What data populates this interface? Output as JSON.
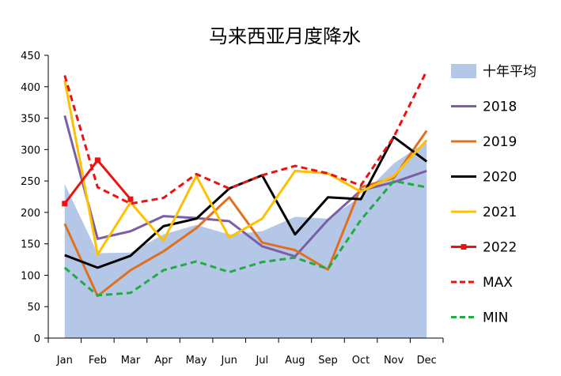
{
  "chart_data": {
    "type": "line",
    "title": "马来西亚月度降水",
    "xlabel": "",
    "ylabel": "",
    "ylim": [
      0,
      450
    ],
    "yticks": [
      0,
      50,
      100,
      150,
      200,
      250,
      300,
      350,
      400,
      450
    ],
    "categories": [
      "Jan",
      "Feb",
      "Mar",
      "Apr",
      "May",
      "Jun",
      "Jul",
      "Aug",
      "Sep",
      "Oct",
      "Nov",
      "Dec"
    ],
    "grid": false,
    "legend_position": "right",
    "area": {
      "name": "十年平均",
      "color": "#b4c7e7",
      "values": [
        245,
        135,
        136,
        165,
        180,
        165,
        170,
        193,
        190,
        225,
        278,
        313
      ]
    },
    "series": [
      {
        "name": "2018",
        "color": "#7b5ea7",
        "style": "solid",
        "marker": "none",
        "values": [
          354,
          158,
          170,
          194,
          191,
          186,
          146,
          130,
          188,
          235,
          248,
          266
        ]
      },
      {
        "name": "2019",
        "color": "#e07020",
        "style": "solid",
        "marker": "none",
        "values": [
          182,
          67,
          108,
          138,
          175,
          224,
          152,
          140,
          109,
          240,
          255,
          330
        ]
      },
      {
        "name": "2020",
        "color": "#000000",
        "style": "solid",
        "marker": "none",
        "values": [
          132,
          112,
          131,
          178,
          190,
          238,
          259,
          165,
          224,
          221,
          320,
          281
        ]
      },
      {
        "name": "2021",
        "color": "#ffc000",
        "style": "solid",
        "marker": "none",
        "values": [
          410,
          133,
          216,
          155,
          258,
          160,
          190,
          266,
          262,
          233,
          258,
          315
        ]
      },
      {
        "name": "2022",
        "color": "#ee1111",
        "style": "solid",
        "marker": "square",
        "values": [
          214,
          283,
          221,
          null,
          null,
          null,
          null,
          null,
          null,
          null,
          null,
          null
        ]
      },
      {
        "name": "MAX",
        "color": "#ee1111",
        "style": "dashed",
        "marker": "none",
        "values": [
          418,
          240,
          214,
          223,
          261,
          238,
          259,
          274,
          262,
          243,
          320,
          425
        ]
      },
      {
        "name": "MIN",
        "color": "#22aa44",
        "style": "dashed",
        "marker": "none",
        "values": [
          112,
          68,
          72,
          108,
          122,
          105,
          121,
          128,
          110,
          188,
          250,
          240
        ]
      }
    ]
  }
}
